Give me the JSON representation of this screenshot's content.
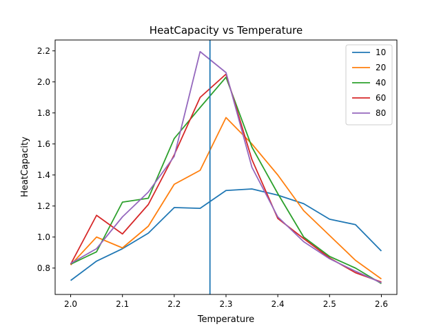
{
  "chart_data": {
    "type": "line",
    "title": "HeatCapacity vs Temperature",
    "xlabel": "Temperature",
    "ylabel": "HeatCapacity",
    "xlim": [
      1.97,
      2.63
    ],
    "ylim": [
      0.63,
      2.27
    ],
    "xticks": [
      2.0,
      2.1,
      2.2,
      2.3,
      2.4,
      2.5,
      2.6
    ],
    "xtick_labels": [
      "2.0",
      "2.1",
      "2.2",
      "2.3",
      "2.4",
      "2.5",
      "2.6"
    ],
    "yticks": [
      0.8,
      1.0,
      1.2,
      1.4,
      1.6,
      1.8,
      2.0,
      2.2
    ],
    "ytick_labels": [
      "0.8",
      "1.0",
      "1.2",
      "1.4",
      "1.6",
      "1.8",
      "2.0",
      "2.2"
    ],
    "grid": false,
    "legend_position": "top-right",
    "vline": {
      "x": 2.269,
      "color": "#1f77b4"
    },
    "x": [
      2.0,
      2.05,
      2.1,
      2.15,
      2.2,
      2.25,
      2.3,
      2.35,
      2.4,
      2.45,
      2.5,
      2.55,
      2.6
    ],
    "series": [
      {
        "name": "10",
        "color": "#1f77b4",
        "values": [
          0.72,
          0.845,
          0.925,
          1.025,
          1.19,
          1.185,
          1.3,
          1.31,
          1.27,
          1.215,
          1.115,
          1.08,
          0.91
        ]
      },
      {
        "name": "20",
        "color": "#ff7f0e",
        "values": [
          0.82,
          1.0,
          0.93,
          1.07,
          1.34,
          1.43,
          1.77,
          1.6,
          1.4,
          1.17,
          1.01,
          0.85,
          0.73
        ]
      },
      {
        "name": "40",
        "color": "#2ca02c",
        "values": [
          0.825,
          0.905,
          1.225,
          1.25,
          1.635,
          1.835,
          2.03,
          1.58,
          1.28,
          1.0,
          0.875,
          0.8,
          0.7
        ]
      },
      {
        "name": "60",
        "color": "#d62728",
        "values": [
          0.825,
          1.14,
          1.02,
          1.21,
          1.53,
          1.9,
          2.05,
          1.5,
          1.12,
          0.99,
          0.865,
          0.77,
          0.71
        ]
      },
      {
        "name": "80",
        "color": "#9467bd",
        "values": [
          0.83,
          0.925,
          1.13,
          1.29,
          1.52,
          2.195,
          2.06,
          1.45,
          1.13,
          0.97,
          0.86,
          0.78,
          0.705
        ]
      }
    ]
  }
}
